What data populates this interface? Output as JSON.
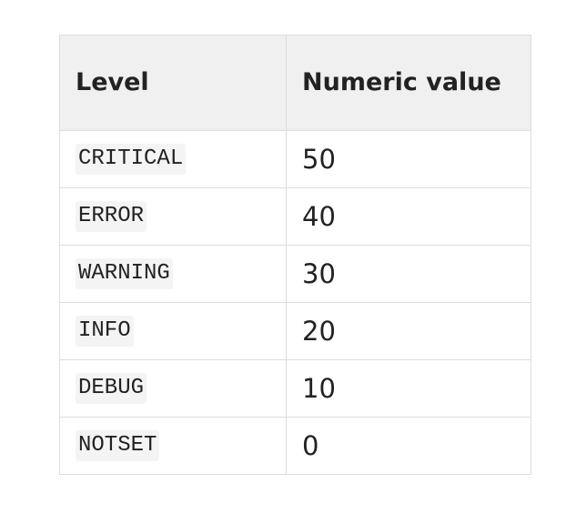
{
  "table": {
    "headers": {
      "level": "Level",
      "numeric_value": "Numeric value"
    },
    "rows": [
      {
        "level": "CRITICAL",
        "value": "50"
      },
      {
        "level": "ERROR",
        "value": "40"
      },
      {
        "level": "WARNING",
        "value": "30"
      },
      {
        "level": "INFO",
        "value": "20"
      },
      {
        "level": "DEBUG",
        "value": "10"
      },
      {
        "level": "NOTSET",
        "value": "0"
      }
    ]
  }
}
